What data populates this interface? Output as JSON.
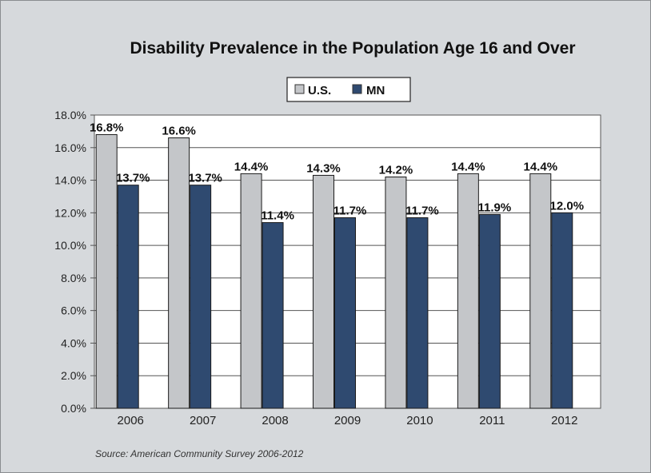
{
  "chart_data": {
    "type": "bar",
    "title": "Disability Prevalence in the Population Age 16 and Over",
    "categories": [
      "2006",
      "2007",
      "2008",
      "2009",
      "2010",
      "2011",
      "2012"
    ],
    "series": [
      {
        "name": "U.S.",
        "values": [
          16.8,
          16.6,
          14.4,
          14.3,
          14.2,
          14.4,
          14.4
        ],
        "labels": [
          "16.8%",
          "16.6%",
          "14.4%",
          "14.3%",
          "14.2%",
          "14.4%",
          "14.4%"
        ],
        "color": "#c4c6c9"
      },
      {
        "name": "MN",
        "values": [
          13.7,
          13.7,
          11.4,
          11.7,
          11.7,
          11.9,
          12.0
        ],
        "labels": [
          "13.7%",
          "13.7%",
          "11.4%",
          "11.7%",
          "11.7%",
          "11.9%",
          "12.0%"
        ],
        "color": "#2f4a70"
      }
    ],
    "ylim": [
      0,
      18
    ],
    "yticks": [
      "0.0%",
      "2.0%",
      "4.0%",
      "6.0%",
      "8.0%",
      "10.0%",
      "12.0%",
      "14.0%",
      "16.0%",
      "18.0%"
    ],
    "xlabel": "",
    "ylabel": "",
    "legend": "top-center",
    "grid": true,
    "source": "Source: American Community Survey 2006-2012"
  }
}
